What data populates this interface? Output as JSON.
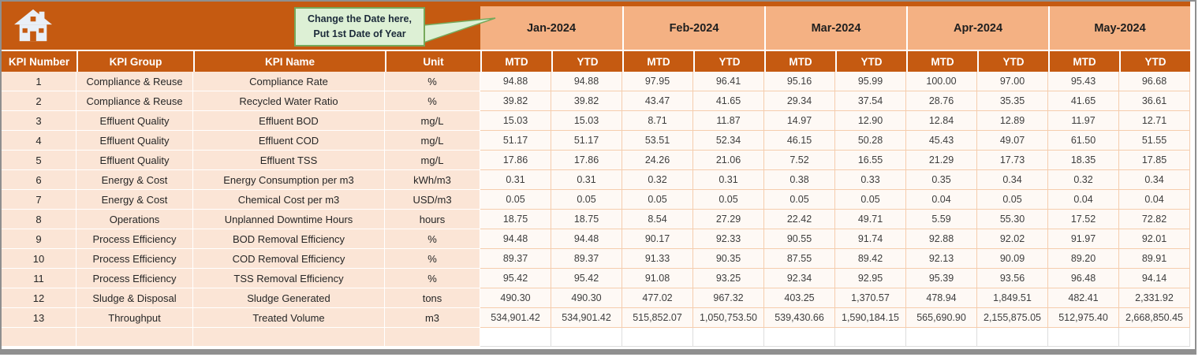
{
  "callout": {
    "line1": "Change the Date here,",
    "line2": "Put 1st Date of Year"
  },
  "table": {
    "column_headers": {
      "kpi_number": "KPI Number",
      "kpi_group": "KPI Group",
      "kpi_name": "KPI Name",
      "unit": "Unit",
      "mtd": "MTD",
      "ytd": "YTD"
    },
    "months": [
      "Jan-2024",
      "Feb-2024",
      "Mar-2024",
      "Apr-2024",
      "May-2024"
    ],
    "rows": [
      {
        "num": "1",
        "group": "Compliance & Reuse",
        "name": "Compliance Rate",
        "unit": "%",
        "values": [
          "94.88",
          "94.88",
          "97.95",
          "96.41",
          "95.16",
          "95.99",
          "100.00",
          "97.00",
          "95.43",
          "96.68"
        ]
      },
      {
        "num": "2",
        "group": "Compliance & Reuse",
        "name": "Recycled Water Ratio",
        "unit": "%",
        "values": [
          "39.82",
          "39.82",
          "43.47",
          "41.65",
          "29.34",
          "37.54",
          "28.76",
          "35.35",
          "41.65",
          "36.61"
        ]
      },
      {
        "num": "3",
        "group": "Effluent Quality",
        "name": "Effluent BOD",
        "unit": "mg/L",
        "values": [
          "15.03",
          "15.03",
          "8.71",
          "11.87",
          "14.97",
          "12.90",
          "12.84",
          "12.89",
          "11.97",
          "12.71"
        ]
      },
      {
        "num": "4",
        "group": "Effluent Quality",
        "name": "Effluent COD",
        "unit": "mg/L",
        "values": [
          "51.17",
          "51.17",
          "53.51",
          "52.34",
          "46.15",
          "50.28",
          "45.43",
          "49.07",
          "61.50",
          "51.55"
        ]
      },
      {
        "num": "5",
        "group": "Effluent Quality",
        "name": "Effluent TSS",
        "unit": "mg/L",
        "values": [
          "17.86",
          "17.86",
          "24.26",
          "21.06",
          "7.52",
          "16.55",
          "21.29",
          "17.73",
          "18.35",
          "17.85"
        ]
      },
      {
        "num": "6",
        "group": "Energy & Cost",
        "name": "Energy Consumption per m3",
        "unit": "kWh/m3",
        "values": [
          "0.31",
          "0.31",
          "0.32",
          "0.31",
          "0.38",
          "0.33",
          "0.35",
          "0.34",
          "0.32",
          "0.34"
        ]
      },
      {
        "num": "7",
        "group": "Energy & Cost",
        "name": "Chemical Cost per m3",
        "unit": "USD/m3",
        "values": [
          "0.05",
          "0.05",
          "0.05",
          "0.05",
          "0.05",
          "0.05",
          "0.04",
          "0.05",
          "0.04",
          "0.04"
        ]
      },
      {
        "num": "8",
        "group": "Operations",
        "name": "Unplanned Downtime Hours",
        "unit": "hours",
        "values": [
          "18.75",
          "18.75",
          "8.54",
          "27.29",
          "22.42",
          "49.71",
          "5.59",
          "55.30",
          "17.52",
          "72.82"
        ]
      },
      {
        "num": "9",
        "group": "Process Efficiency",
        "name": "BOD Removal Efficiency",
        "unit": "%",
        "values": [
          "94.48",
          "94.48",
          "90.17",
          "92.33",
          "90.55",
          "91.74",
          "92.88",
          "92.02",
          "91.97",
          "92.01"
        ]
      },
      {
        "num": "10",
        "group": "Process Efficiency",
        "name": "COD Removal Efficiency",
        "unit": "%",
        "values": [
          "89.37",
          "89.37",
          "91.33",
          "90.35",
          "87.55",
          "89.42",
          "92.13",
          "90.09",
          "89.20",
          "89.91"
        ]
      },
      {
        "num": "11",
        "group": "Process Efficiency",
        "name": "TSS Removal Efficiency",
        "unit": "%",
        "values": [
          "95.42",
          "95.42",
          "91.08",
          "93.25",
          "92.34",
          "92.95",
          "95.39",
          "93.56",
          "96.48",
          "94.14"
        ]
      },
      {
        "num": "12",
        "group": "Sludge & Disposal",
        "name": "Sludge Generated",
        "unit": "tons",
        "values": [
          "490.30",
          "490.30",
          "477.02",
          "967.32",
          "403.25",
          "1,370.57",
          "478.94",
          "1,849.51",
          "482.41",
          "2,331.92"
        ]
      },
      {
        "num": "13",
        "group": "Throughput",
        "name": "Treated Volume",
        "unit": "m3",
        "values": [
          "534,901.42",
          "534,901.42",
          "515,852.07",
          "1,050,753.50",
          "539,430.66",
          "1,590,184.15",
          "565,690.90",
          "2,155,875.05",
          "512,975.40",
          "2,668,850.45"
        ]
      }
    ]
  },
  "icons": {
    "home": "home-icon",
    "callout_arrow": "callout-arrow-icon"
  },
  "colors": {
    "header_bg": "#C55A11",
    "month_bg": "#F4B183",
    "kpi_row_bg": "#FBE5D6",
    "value_cell_bg": "#FEF9F5",
    "value_cell_border": "#F5CDAE",
    "callout_bg": "#DDF0D5",
    "callout_border": "#76A95B",
    "frame_gray": "#8F8F8F",
    "header_text": "#FFFFFF"
  }
}
